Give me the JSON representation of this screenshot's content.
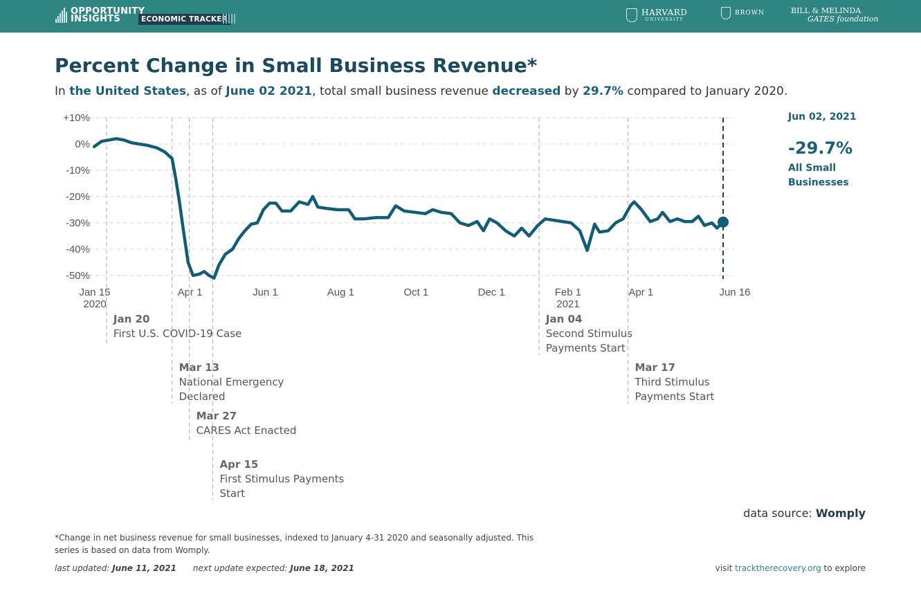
{
  "header": {
    "brand_line1": "OPPORTUNITY",
    "brand_line2": "INSIGHTS",
    "tracker_label": "ECONOMIC TRACKER",
    "partners": {
      "harvard_name": "HARVARD",
      "harvard_sub": "UNIVERSITY",
      "brown": "BROWN",
      "gates_line1": "BILL & MELINDA",
      "gates_line2": "GATES foundation"
    },
    "colors": {
      "bar": "#2f8582",
      "accent": "#1b5f79",
      "line": "#135c77"
    }
  },
  "title": "Percent Change in Small Business Revenue*",
  "subtitle": {
    "prefix": "In ",
    "region": "the United States",
    "mid1": ", as of ",
    "date": "June 02 2021",
    "mid2": ", total small business revenue ",
    "direction": "decreased",
    "mid3": " by ",
    "pct": "29.7%",
    "suffix": " compared to January 2020."
  },
  "chart_data": {
    "type": "line",
    "title": "Percent Change in Small Business Revenue*",
    "xlabel": "",
    "ylabel": "",
    "ylim": [
      -50,
      10
    ],
    "y_ticks": [
      {
        "value": 10,
        "label": "+10%"
      },
      {
        "value": 0,
        "label": "0%"
      },
      {
        "value": -10,
        "label": "-10%"
      },
      {
        "value": -20,
        "label": "-20%"
      },
      {
        "value": -30,
        "label": "-30%"
      },
      {
        "value": -40,
        "label": "-40%"
      },
      {
        "value": -50,
        "label": "-50%"
      }
    ],
    "x_domain": [
      "2020-01-15",
      "2021-06-16"
    ],
    "x_ticks": [
      {
        "date": "2020-01-15",
        "label": "Jan 15",
        "sub": "2020"
      },
      {
        "date": "2020-04-01",
        "label": "Apr 1"
      },
      {
        "date": "2020-06-01",
        "label": "Jun 1"
      },
      {
        "date": "2020-08-01",
        "label": "Aug 1"
      },
      {
        "date": "2020-10-01",
        "label": "Oct 1"
      },
      {
        "date": "2020-12-01",
        "label": "Dec 1"
      },
      {
        "date": "2021-02-01",
        "label": "Feb 1",
        "sub": "2021"
      },
      {
        "date": "2021-04-01",
        "label": "Apr 1"
      },
      {
        "date": "2021-06-16",
        "label": "Jun 16"
      }
    ],
    "series": [
      {
        "name": "All Small Businesses",
        "points": [
          [
            "2020-01-10",
            -1
          ],
          [
            "2020-01-16",
            1
          ],
          [
            "2020-01-22",
            1.5
          ],
          [
            "2020-01-28",
            2
          ],
          [
            "2020-02-03",
            1.5
          ],
          [
            "2020-02-09",
            0.5
          ],
          [
            "2020-02-15",
            0
          ],
          [
            "2020-02-22",
            -0.5
          ],
          [
            "2020-03-01",
            -1.5
          ],
          [
            "2020-03-07",
            -3
          ],
          [
            "2020-03-13",
            -5.5
          ],
          [
            "2020-03-16",
            -13
          ],
          [
            "2020-03-19",
            -22
          ],
          [
            "2020-03-22",
            -32
          ],
          [
            "2020-03-26",
            -45
          ],
          [
            "2020-03-30",
            -50
          ],
          [
            "2020-04-04",
            -49.5
          ],
          [
            "2020-04-08",
            -48.5
          ],
          [
            "2020-04-12",
            -50
          ],
          [
            "2020-04-16",
            -51
          ],
          [
            "2020-04-20",
            -46
          ],
          [
            "2020-04-25",
            -42
          ],
          [
            "2020-05-01",
            -40
          ],
          [
            "2020-05-06",
            -36
          ],
          [
            "2020-05-11",
            -33
          ],
          [
            "2020-05-16",
            -30.5
          ],
          [
            "2020-05-21",
            -30
          ],
          [
            "2020-05-26",
            -25
          ],
          [
            "2020-05-31",
            -22.5
          ],
          [
            "2020-06-05",
            -22.5
          ],
          [
            "2020-06-10",
            -25.5
          ],
          [
            "2020-06-17",
            -25.5
          ],
          [
            "2020-06-24",
            -22
          ],
          [
            "2020-07-01",
            -23
          ],
          [
            "2020-07-05",
            -20
          ],
          [
            "2020-07-09",
            -24
          ],
          [
            "2020-07-16",
            -24.5
          ],
          [
            "2020-07-25",
            -25
          ],
          [
            "2020-08-03",
            -25
          ],
          [
            "2020-08-08",
            -28.5
          ],
          [
            "2020-08-15",
            -28.5
          ],
          [
            "2020-08-25",
            -28
          ],
          [
            "2020-09-04",
            -28
          ],
          [
            "2020-09-10",
            -23.5
          ],
          [
            "2020-09-17",
            -25.5
          ],
          [
            "2020-09-26",
            -26
          ],
          [
            "2020-10-04",
            -26.5
          ],
          [
            "2020-10-10",
            -25
          ],
          [
            "2020-10-17",
            -26
          ],
          [
            "2020-10-25",
            -26.5
          ],
          [
            "2020-11-01",
            -30
          ],
          [
            "2020-11-08",
            -31
          ],
          [
            "2020-11-15",
            -29.5
          ],
          [
            "2020-11-20",
            -33
          ],
          [
            "2020-11-25",
            -28.5
          ],
          [
            "2020-12-01",
            -30
          ],
          [
            "2020-12-08",
            -33
          ],
          [
            "2020-12-15",
            -35
          ],
          [
            "2020-12-21",
            -32
          ],
          [
            "2020-12-27",
            -35
          ],
          [
            "2021-01-03",
            -31
          ],
          [
            "2021-01-09",
            -28.5
          ],
          [
            "2021-01-16",
            -29
          ],
          [
            "2021-01-23",
            -29.5
          ],
          [
            "2021-01-30",
            -30
          ],
          [
            "2021-02-06",
            -33
          ],
          [
            "2021-02-12",
            -40.5
          ],
          [
            "2021-02-18",
            -30.5
          ],
          [
            "2021-02-22",
            -33.5
          ],
          [
            "2021-03-01",
            -33
          ],
          [
            "2021-03-07",
            -30
          ],
          [
            "2021-03-13",
            -28.5
          ],
          [
            "2021-03-19",
            -23.5
          ],
          [
            "2021-03-22",
            -22
          ],
          [
            "2021-03-28",
            -25
          ],
          [
            "2021-04-04",
            -29.5
          ],
          [
            "2021-04-10",
            -28.5
          ],
          [
            "2021-04-14",
            -26
          ],
          [
            "2021-04-20",
            -29.5
          ],
          [
            "2021-04-26",
            -28.5
          ],
          [
            "2021-05-02",
            -29.5
          ],
          [
            "2021-05-08",
            -29.5
          ],
          [
            "2021-05-13",
            -27.5
          ],
          [
            "2021-05-18",
            -31
          ],
          [
            "2021-05-24",
            -30
          ],
          [
            "2021-05-28",
            -32
          ],
          [
            "2021-06-02",
            -29.7
          ]
        ]
      }
    ],
    "current_point": {
      "date": "2021-06-02",
      "value": -29.7
    },
    "events": [
      {
        "date": "2020-01-20",
        "label_date": "Jan 20",
        "lines": [
          "First U.S. COVID-19 Case"
        ]
      },
      {
        "date": "2020-03-13",
        "label_date": "Mar 13",
        "lines": [
          "National Emergency",
          "Declared"
        ]
      },
      {
        "date": "2020-03-27",
        "label_date": "Mar 27",
        "lines": [
          "CARES Act Enacted"
        ]
      },
      {
        "date": "2020-04-15",
        "label_date": "Apr 15",
        "lines": [
          "First Stimulus Payments",
          "Start"
        ]
      },
      {
        "date": "2021-01-04",
        "label_date": "Jan 04",
        "lines": [
          "Second Stimulus",
          "Payments Start"
        ]
      },
      {
        "date": "2021-03-17",
        "label_date": "Mar 17",
        "lines": [
          "Third Stimulus",
          "Payments Start"
        ]
      }
    ]
  },
  "side": {
    "date": "Jun 02, 2021",
    "value": "-29.7%",
    "label": "All Small Businesses"
  },
  "source": {
    "prefix": "data source: ",
    "name": "Womply"
  },
  "footnote": "*Change in net business revenue for small businesses, indexed to January 4-31 2020 and seasonally adjusted. This series is based on data from Womply.",
  "updated": {
    "last_label": "last updated: ",
    "last_date": "June 11, 2021",
    "next_label": "next update expected: ",
    "next_date": "June 18, 2021"
  },
  "visit": {
    "prefix": "visit ",
    "link": "trackthe­recovery.org",
    "suffix": " to explore"
  }
}
